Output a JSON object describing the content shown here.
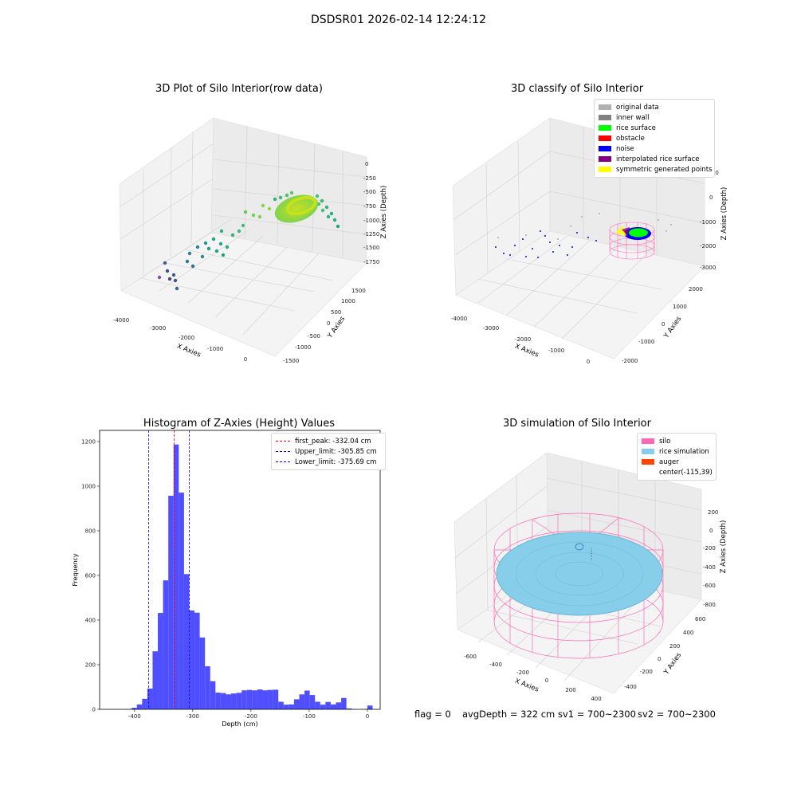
{
  "figure": {
    "title": "DSDSR01 2026-02-14 12:24:12"
  },
  "chart_data": [
    {
      "type": "scatter3d",
      "title": "3D Plot of Silo Interior(row data)",
      "xlabel": "X Axies",
      "ylabel": "Y Axies",
      "zlabel": "Z Axies (Depth)",
      "x_ticks": [
        "-4000",
        "-3000",
        "-2000",
        "-1000",
        "0"
      ],
      "y_ticks": [
        "-1500",
        "-1000",
        "-500",
        "0",
        "500",
        "1000",
        "1500"
      ],
      "z_ticks": [
        "0",
        "-250",
        "-500",
        "-750",
        "-1000",
        "-1250",
        "-1500",
        "-1750"
      ],
      "colormap": "viridis",
      "grid": true
    },
    {
      "type": "scatter3d",
      "title": "3D classify of Silo Interior",
      "xlabel": "X Axies",
      "ylabel": "Y Axies",
      "zlabel": "Z Axies (Depth)",
      "x_ticks": [
        "-4000",
        "-3000",
        "-2000",
        "-1000",
        "0"
      ],
      "y_ticks": [
        "-2000",
        "-1000",
        "0",
        "1000",
        "2000"
      ],
      "z_ticks": [
        "1000",
        "0",
        "-1000",
        "-2000",
        "-3000"
      ],
      "legend_position": "top-right",
      "legend": [
        {
          "label": "original data",
          "color": "#b0b0b0"
        },
        {
          "label": "inner wall",
          "color": "#808080"
        },
        {
          "label": "rice surface",
          "color": "#00ff00"
        },
        {
          "label": "obstacle",
          "color": "#ff0000"
        },
        {
          "label": "noise",
          "color": "#0000ff"
        },
        {
          "label": "interpolated rice surface",
          "color": "#800080"
        },
        {
          "label": "symmetric generated points",
          "color": "#ffff00"
        }
      ],
      "grid": true
    },
    {
      "type": "bar",
      "title": "Histogram of Z-Axies (Height) Values",
      "xlabel": "Depth (cm)",
      "ylabel": "Frequency",
      "xlim": [
        -460,
        22
      ],
      "ylim": [
        0,
        1250
      ],
      "x_ticks": [
        -400,
        -300,
        -200,
        -100,
        0
      ],
      "y_ticks": [
        0,
        200,
        400,
        600,
        800,
        1000,
        1200
      ],
      "bar_color": "#4646ff",
      "bins": [
        [
          -414,
          1
        ],
        [
          -405,
          7
        ],
        [
          -396,
          22
        ],
        [
          -387,
          47
        ],
        [
          -378,
          93
        ],
        [
          -369,
          260
        ],
        [
          -360,
          432
        ],
        [
          -351,
          578
        ],
        [
          -342,
          957
        ],
        [
          -333,
          1187
        ],
        [
          -324,
          971
        ],
        [
          -315,
          606
        ],
        [
          -306,
          443
        ],
        [
          -297,
          433
        ],
        [
          -288,
          322
        ],
        [
          -279,
          193
        ],
        [
          -270,
          126
        ],
        [
          -261,
          75
        ],
        [
          -252,
          73
        ],
        [
          -243,
          67
        ],
        [
          -234,
          71
        ],
        [
          -225,
          74
        ],
        [
          -216,
          85
        ],
        [
          -207,
          87
        ],
        [
          -198,
          85
        ],
        [
          -189,
          89
        ],
        [
          -180,
          85
        ],
        [
          -171,
          87
        ],
        [
          -162,
          88
        ],
        [
          -153,
          34
        ],
        [
          -144,
          21
        ],
        [
          -135,
          22
        ],
        [
          -126,
          45
        ],
        [
          -117,
          67
        ],
        [
          -108,
          84
        ],
        [
          -99,
          64
        ],
        [
          -90,
          34
        ],
        [
          -81,
          21
        ],
        [
          -72,
          33
        ],
        [
          -63,
          22
        ],
        [
          -54,
          31
        ],
        [
          -45,
          51
        ],
        [
          -36,
          4
        ],
        [
          -27,
          1
        ],
        [
          -18,
          0
        ],
        [
          -9,
          1
        ],
        [
          0,
          17
        ]
      ],
      "bin_width": 9,
      "vlines": [
        {
          "label": "first_peak: -332.04 cm",
          "x": -332.04,
          "color": "#ff0000"
        },
        {
          "label": "Upper_limit: -305.85 cm",
          "x": -305.85,
          "color": "#0000ff"
        },
        {
          "label": "Lower_limit: -375.69 cm",
          "x": -375.69,
          "color": "#0000ff"
        }
      ],
      "legend_position": "top-right"
    },
    {
      "type": "surface3d",
      "title": "3D simulation of Silo Interior",
      "xlabel": "X Axies",
      "ylabel": "Y Axies",
      "zlabel": "Z Axies (Depth)",
      "x_ticks": [
        "-600",
        "-400",
        "-200",
        "0",
        "200",
        "400"
      ],
      "y_ticks": [
        "-400",
        "-200",
        "0",
        "200",
        "400",
        "600"
      ],
      "z_ticks": [
        "200",
        "0",
        "-200",
        "-400",
        "-600",
        "-800"
      ],
      "legend_position": "top-right",
      "legend": [
        {
          "label": "silo",
          "color": "#ff69b4"
        },
        {
          "label": "rice simulation",
          "color": "#87ceeb"
        },
        {
          "label": "auger",
          "color": "#ff4500"
        },
        {
          "label": "center(-115,39)",
          "color": ""
        }
      ],
      "grid": true
    }
  ],
  "footer": {
    "flag": "flag = 0",
    "avg_depth": "avgDepth = 322 cm",
    "sv1": "sv1 = 700~2300",
    "sv2": "sv2 = 700~2300"
  }
}
